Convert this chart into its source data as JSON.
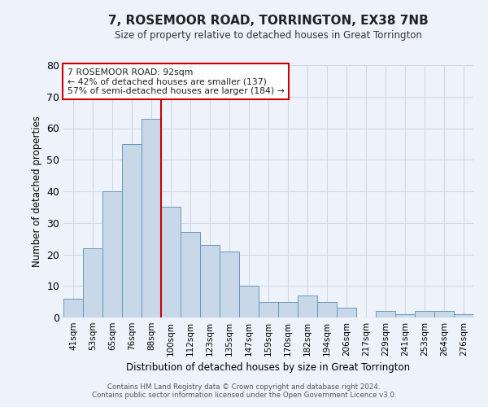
{
  "title1": "7, ROSEMOOR ROAD, TORRINGTON, EX38 7NB",
  "title2": "Size of property relative to detached houses in Great Torrington",
  "xlabel": "Distribution of detached houses by size in Great Torrington",
  "ylabel": "Number of detached properties",
  "categories": [
    "41sqm",
    "53sqm",
    "65sqm",
    "76sqm",
    "88sqm",
    "100sqm",
    "112sqm",
    "123sqm",
    "135sqm",
    "147sqm",
    "159sqm",
    "170sqm",
    "182sqm",
    "194sqm",
    "206sqm",
    "217sqm",
    "229sqm",
    "241sqm",
    "253sqm",
    "264sqm",
    "276sqm"
  ],
  "values": [
    6,
    22,
    40,
    55,
    63,
    35,
    27,
    23,
    21,
    10,
    5,
    5,
    7,
    5,
    3,
    0,
    2,
    1,
    2,
    2,
    1
  ],
  "bar_color": "#c8d8e8",
  "bar_edge_color": "#6699bb",
  "grid_color": "#d0d8e8",
  "background_color": "#eef2fa",
  "vline_x_index": 4.5,
  "vline_color": "#cc0000",
  "annotation_text": "7 ROSEMOOR ROAD: 92sqm\n← 42% of detached houses are smaller (137)\n57% of semi-detached houses are larger (184) →",
  "annotation_box_color": "#ffffff",
  "annotation_box_edge": "#cc0000",
  "footer1": "Contains HM Land Registry data © Crown copyright and database right 2024.",
  "footer2": "Contains public sector information licensed under the Open Government Licence v3.0.",
  "ylim": [
    0,
    80
  ],
  "yticks": [
    0,
    10,
    20,
    30,
    40,
    50,
    60,
    70,
    80
  ]
}
